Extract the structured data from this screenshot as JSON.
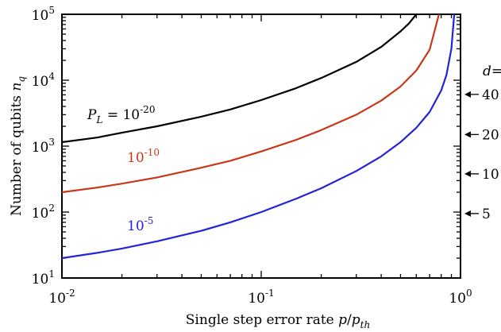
{
  "chart_data": {
    "type": "line",
    "xscale": "log",
    "yscale": "log",
    "xlim": [
      0.01,
      1
    ],
    "ylim": [
      10,
      100000
    ],
    "xlabel_prefix": "Single step error rate ",
    "xlabel_var": "p",
    "xlabel_denom": "p",
    "xlabel_denom_sub": "th",
    "ylabel_prefix": "Number of qubits ",
    "ylabel_var": "n",
    "ylabel_sub": "q",
    "x_ticks": [
      {
        "value": 0.01,
        "base": "10",
        "exp": "-2"
      },
      {
        "value": 0.1,
        "base": "10",
        "exp": "-1"
      },
      {
        "value": 1,
        "base": "10",
        "exp": "0"
      }
    ],
    "y_ticks": [
      {
        "value": 10,
        "base": "10",
        "exp": "1"
      },
      {
        "value": 100,
        "base": "10",
        "exp": "2"
      },
      {
        "value": 1000,
        "base": "10",
        "exp": "3"
      },
      {
        "value": 10000,
        "base": "10",
        "exp": "4"
      },
      {
        "value": 100000,
        "base": "10",
        "exp": "5"
      }
    ],
    "series": [
      {
        "name": "10-20",
        "label_prefix": "P",
        "label_sub": "L",
        "label_eq": " = ",
        "label_base": "10",
        "label_exp": "-20",
        "color": "#000000",
        "x": [
          0.01,
          0.015,
          0.02,
          0.03,
          0.05,
          0.07,
          0.1,
          0.15,
          0.2,
          0.3,
          0.4,
          0.5,
          0.55,
          0.6
        ],
        "y": [
          1150,
          1350,
          1600,
          2000,
          2800,
          3600,
          5000,
          7600,
          10800,
          19000,
          32000,
          55000,
          72000,
          100000
        ]
      },
      {
        "name": "10-10",
        "label_prefix": "",
        "label_sub": "",
        "label_eq": "",
        "label_base": "10",
        "label_exp": "-10",
        "color": "#c8371a",
        "x": [
          0.01,
          0.015,
          0.02,
          0.03,
          0.05,
          0.07,
          0.1,
          0.15,
          0.2,
          0.3,
          0.4,
          0.5,
          0.6,
          0.7,
          0.78
        ],
        "y": [
          200,
          235,
          270,
          335,
          470,
          600,
          830,
          1250,
          1750,
          3000,
          4900,
          8000,
          14000,
          29000,
          100000
        ]
      },
      {
        "name": "10-5",
        "label_prefix": "",
        "label_sub": "",
        "label_eq": "",
        "label_base": "10",
        "label_exp": "-5",
        "color": "#2323d8",
        "x": [
          0.01,
          0.015,
          0.02,
          0.03,
          0.05,
          0.07,
          0.1,
          0.15,
          0.2,
          0.3,
          0.4,
          0.5,
          0.6,
          0.7,
          0.8,
          0.85,
          0.9,
          0.93
        ],
        "y": [
          20,
          24,
          28,
          36,
          52,
          70,
          100,
          160,
          230,
          420,
          700,
          1150,
          1900,
          3300,
          7000,
          12000,
          30000,
          100000
        ]
      }
    ],
    "right_axis": {
      "title": "d=",
      "markers": [
        {
          "label": "40",
          "n_q": 6100
        },
        {
          "label": "20",
          "n_q": 1500
        },
        {
          "label": "10",
          "n_q": 380
        },
        {
          "label": "5",
          "n_q": 95
        }
      ]
    }
  }
}
